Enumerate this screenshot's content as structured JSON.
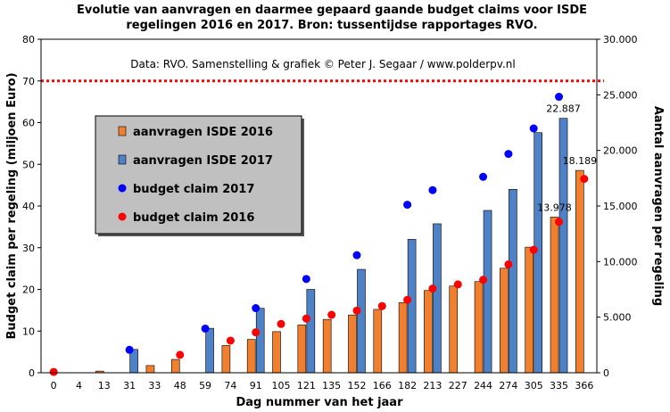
{
  "chart_data": {
    "type": "bar",
    "title_line1": "Evolutie van aanvragen en daarmee gepaard gaande budget claims voor ISDE",
    "title_line2": "regelingen  2016 en 2017. Bron: tussentijdse rapportages RVO.",
    "credit": "Data: RVO.  Samenstelling  & grafiek © Peter J. Segaar / www.polderpv.nl",
    "xlabel": "Dag nummer van het jaar",
    "ylabel_left": "Budget claim per regeling  (miljoen Euro)",
    "ylabel_right": "Aantal aanvragen per regeling",
    "ylim_left": [
      0,
      80
    ],
    "ylim_right": [
      0,
      30000
    ],
    "yticks_left": [
      "0",
      "10",
      "20",
      "30",
      "40",
      "50",
      "60",
      "70",
      "80"
    ],
    "yticks_right": [
      "0",
      "5.000",
      "10.000",
      "15.000",
      "20.000",
      "25.000",
      "30.000"
    ],
    "categories": [
      "0",
      "4",
      "13",
      "31",
      "33",
      "48",
      "59",
      "74",
      "91",
      "105",
      "121",
      "135",
      "152",
      "166",
      "182",
      "213",
      "227",
      "244",
      "274",
      "305",
      "335",
      "366"
    ],
    "series": [
      {
        "name": "aanvragen ISDE 2016",
        "kind": "bar",
        "axis": "right",
        "color": "#f07f2f",
        "values": [
          null,
          null,
          150,
          null,
          650,
          1200,
          null,
          2450,
          3000,
          3700,
          4300,
          4800,
          5200,
          5700,
          6300,
          7400,
          7800,
          8200,
          9400,
          11300,
          14000,
          18200
        ]
      },
      {
        "name": "aanvragen ISDE 2017",
        "kind": "bar",
        "axis": "right",
        "color": "#4f81c7",
        "values": [
          null,
          null,
          null,
          2100,
          null,
          null,
          4000,
          null,
          5800,
          null,
          7500,
          null,
          9300,
          null,
          12000,
          13400,
          null,
          14600,
          16500,
          21600,
          22887,
          null
        ]
      },
      {
        "name": "budget claim 2017",
        "kind": "dot",
        "axis": "left",
        "color": "#0000ff",
        "values": [
          null,
          null,
          null,
          5.5,
          null,
          null,
          10.6,
          null,
          15.5,
          null,
          22.5,
          null,
          28.2,
          null,
          40.3,
          43.8,
          null,
          47.0,
          52.5,
          58.6,
          66.2,
          null
        ]
      },
      {
        "name": "budget claim 2016",
        "kind": "dot",
        "axis": "left",
        "color": "#ff0000",
        "values": [
          0.2,
          null,
          null,
          null,
          null,
          4.3,
          null,
          7.7,
          9.7,
          11.7,
          13.0,
          13.9,
          14.9,
          16.0,
          17.5,
          20.2,
          21.2,
          22.3,
          26.0,
          29.5,
          36.2,
          46.5
        ]
      }
    ],
    "reference_line": {
      "axis": "left",
      "value": 70,
      "color": "#ff0000",
      "style": "dotted"
    },
    "data_labels": [
      {
        "category": "335",
        "series": "aanvragen ISDE 2017",
        "text": "22.887"
      },
      {
        "category": "366",
        "series": "aanvragen ISDE 2016",
        "text": "18.189"
      },
      {
        "category": "335",
        "series": "aanvragen ISDE 2016",
        "text": "13.978"
      }
    ],
    "legend": {
      "placement": "top-left",
      "background": "#c0c0c0",
      "items": [
        {
          "label": "aanvragen ISDE 2016",
          "marker": "square",
          "color": "#f07f2f"
        },
        {
          "label": "aanvragen ISDE 2017",
          "marker": "square",
          "color": "#4f81c7"
        },
        {
          "label": "budget claim 2017",
          "marker": "dot",
          "color": "#0000ff"
        },
        {
          "label": "budget claim 2016",
          "marker": "dot",
          "color": "#ff0000"
        }
      ]
    }
  }
}
